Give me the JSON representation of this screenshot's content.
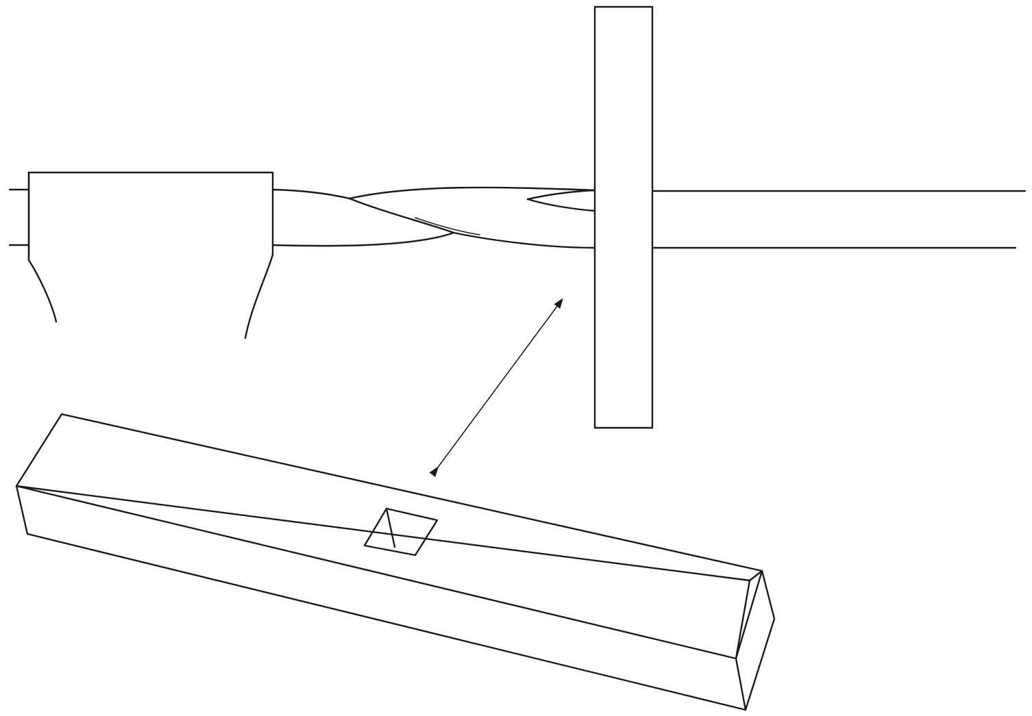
{
  "figure": {
    "background_color": "#ffffff",
    "line_color": "#1a1a1a",
    "parts": [
      {
        "id": "drill-chuck",
        "icon": "chuck-icon"
      },
      {
        "id": "twist-drill-bit",
        "icon": "drill-bit-icon"
      },
      {
        "id": "grinding-wheel",
        "icon": "wheel-icon"
      },
      {
        "id": "wheel-spindle",
        "icon": "spindle-icon"
      },
      {
        "id": "square-bar-with-mortise",
        "icon": "bar-icon"
      },
      {
        "id": "double-headed-arrow",
        "icon": "arrow-icon"
      }
    ]
  }
}
